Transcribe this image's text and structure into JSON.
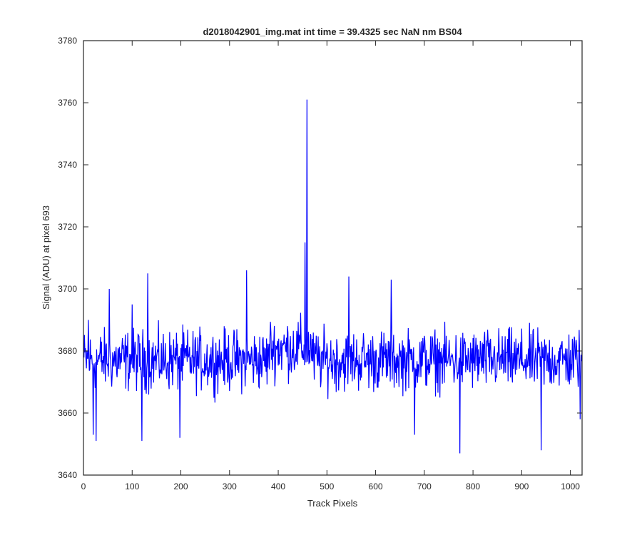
{
  "chart_data": {
    "type": "line",
    "title": "d2018042901_img.mat int time = 39.4325 sec  NaN nm BS04",
    "xlabel": "Track Pixels",
    "ylabel": "Signal (ADU) at pixel 693",
    "xlim": [
      0,
      1024
    ],
    "ylim": [
      3640,
      3780
    ],
    "xticks": [
      0,
      100,
      200,
      300,
      400,
      500,
      600,
      700,
      800,
      900,
      1000
    ],
    "yticks": [
      3640,
      3660,
      3680,
      3700,
      3720,
      3740,
      3760,
      3780
    ],
    "grid": false,
    "box": true,
    "series": [
      {
        "color": "#0000ff",
        "generated_from_picture": "1024-point signal with noise around 3677 ADU, +/- ~12 ADU",
        "x_start": 1,
        "x_end": 1024,
        "baseline": 3677,
        "noise_amplitude": 9,
        "highlights": [
          {
            "x": 10,
            "y": 3690
          },
          {
            "x": 20,
            "y": 3653
          },
          {
            "x": 26,
            "y": 3651
          },
          {
            "x": 53,
            "y": 3700
          },
          {
            "x": 100,
            "y": 3695
          },
          {
            "x": 120,
            "y": 3651
          },
          {
            "x": 132,
            "y": 3705
          },
          {
            "x": 198,
            "y": 3652
          },
          {
            "x": 335,
            "y": 3706
          },
          {
            "x": 455,
            "y": 3715
          },
          {
            "x": 459,
            "y": 3761
          },
          {
            "x": 545,
            "y": 3704
          },
          {
            "x": 632,
            "y": 3703
          },
          {
            "x": 680,
            "y": 3653
          },
          {
            "x": 773,
            "y": 3647
          },
          {
            "x": 940,
            "y": 3648
          },
          {
            "x": 1020,
            "y": 3658
          }
        ]
      }
    ]
  }
}
